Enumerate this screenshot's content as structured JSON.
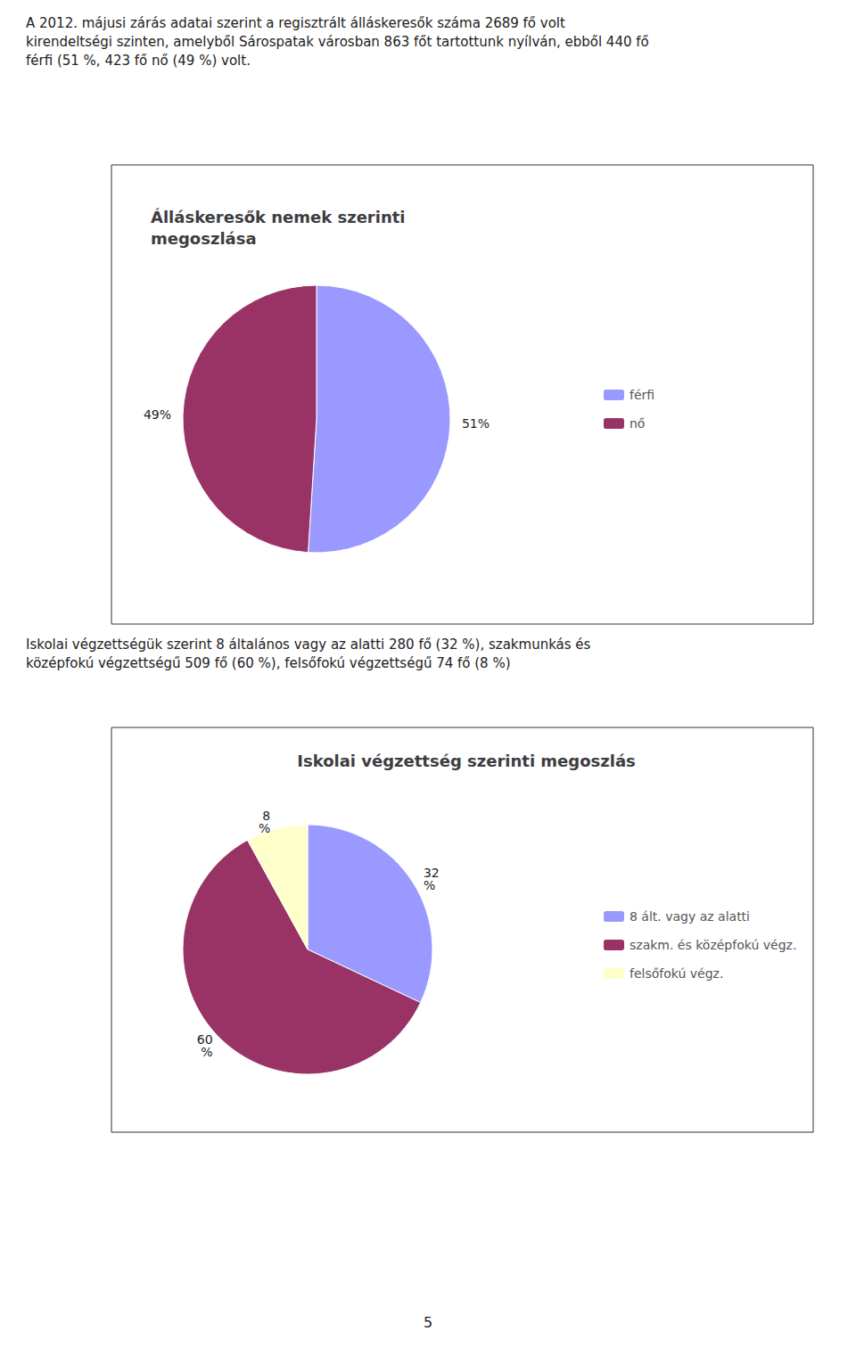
{
  "chart_data": [
    {
      "type": "pie",
      "title": "Álláskeresők nemek szerinti\nmegoszlása",
      "annotations": [
        "A 2012. májusi zárás adatai szerint a regisztrált álláskeresők száma 2689 fő volt\nkirendeltségi szinten, amelyből Sárospatak városban 863 főt tartottunk nyílván, ebből 440 fő\nférfi (51 %, 423 fő nő (49 %) volt."
      ],
      "categories": [
        "férfi",
        "nő"
      ],
      "values": [
        51,
        49
      ],
      "value_labels": [
        "51%",
        "49%"
      ],
      "colors": [
        "#9999ff",
        "#993366"
      ],
      "data_labels": true,
      "legend": "right"
    },
    {
      "type": "pie",
      "title": "Iskolai végzettség szerinti megoszlás",
      "annotations": [
        "Iskolai végzettségük szerint 8 általános vagy az alatti 280 fő (32 %), szakmunkás és\nközépfokú végzettségű 509 fő (60 %), felsőfokú végzettségű 74 fő (8 %)",
        "5"
      ],
      "categories": [
        "8 ált. vagy az alatti",
        "szakm. és középfokú végz.",
        "felsőfokú végz."
      ],
      "values": [
        32,
        60,
        8
      ],
      "value_labels": [
        "32\n%",
        "60\n%",
        "8\n%"
      ],
      "colors": [
        "#9999ff",
        "#993366",
        "#ffffcc"
      ],
      "data_labels": true,
      "legend": "right"
    }
  ]
}
